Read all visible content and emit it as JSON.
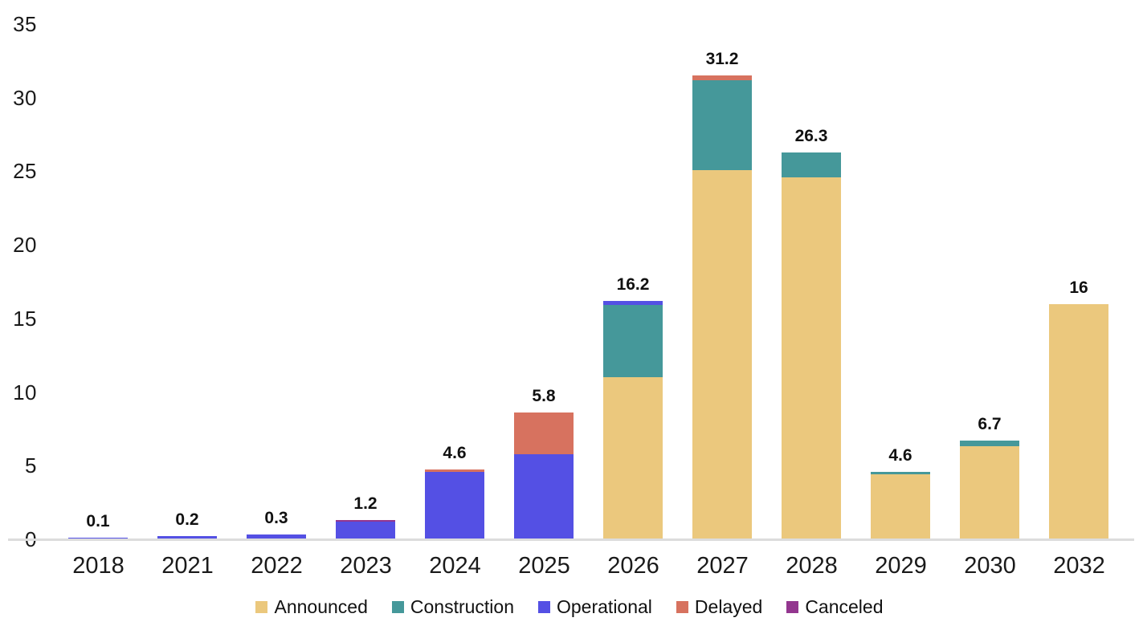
{
  "chart_data": {
    "type": "bar",
    "stacked": true,
    "title": "",
    "xlabel": "",
    "ylabel": "",
    "ylim": [
      0,
      35
    ],
    "y_ticks": [
      0,
      5,
      10,
      15,
      20,
      25,
      30,
      35
    ],
    "grid": false,
    "legend_position": "bottom",
    "categories": [
      "2018",
      "2021",
      "2022",
      "2023",
      "2024",
      "2025",
      "2026",
      "2027",
      "2028",
      "2029",
      "2030",
      "2032"
    ],
    "series": [
      {
        "name": "Announced",
        "color": "#EBC87D",
        "values": [
          0,
          0,
          0,
          0,
          0,
          0,
          11.0,
          25.1,
          24.6,
          4.4,
          6.3,
          16
        ]
      },
      {
        "name": "Construction",
        "color": "#45989A",
        "values": [
          0,
          0,
          0,
          0,
          0,
          0,
          4.9,
          6.1,
          1.7,
          0.2,
          0.4,
          0
        ]
      },
      {
        "name": "Operational",
        "color": "#5450E4",
        "values": [
          0.1,
          0.2,
          0.3,
          1.2,
          4.6,
          5.8,
          0.3,
          0,
          0,
          0,
          0,
          0
        ]
      },
      {
        "name": "Delayed",
        "color": "#D7725F",
        "values": [
          0,
          0,
          0,
          0,
          0.15,
          2.8,
          0,
          0.3,
          0,
          0,
          0,
          0
        ]
      },
      {
        "name": "Canceled",
        "color": "#93368F",
        "values": [
          0,
          0,
          0,
          0.1,
          0,
          0,
          0,
          0,
          0,
          0,
          0,
          0
        ]
      }
    ],
    "bar_labels": [
      "0.1",
      "0.2",
      "0.3",
      "1.2",
      "4.6",
      "5.8",
      "16.2",
      "31.2",
      "26.3",
      "4.6",
      "6.7",
      "16"
    ],
    "legend_items": [
      "Announced",
      "Construction",
      "Operational",
      "Delayed",
      "Canceled"
    ],
    "axis_line_color": "#dcdcdc",
    "text_color": "#1a1a1a"
  }
}
